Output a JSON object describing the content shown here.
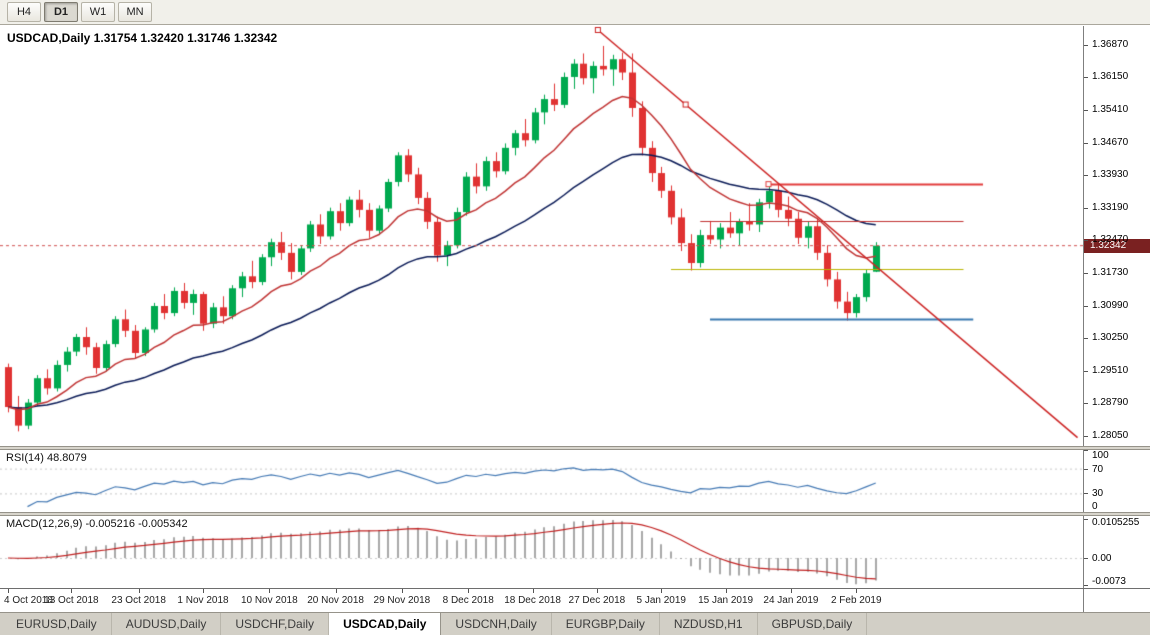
{
  "toolbar": {
    "timeframes": [
      {
        "label": "H4",
        "active": false
      },
      {
        "label": "D1",
        "active": true
      },
      {
        "label": "W1",
        "active": false
      },
      {
        "label": "MN",
        "active": false
      }
    ]
  },
  "chart": {
    "title": "USDCAD,Daily 1.31754 1.32420 1.31746 1.32342",
    "symbol": "USDCAD,Daily",
    "open": "1.31754",
    "high": "1.32420",
    "low": "1.31746",
    "close": "1.32342",
    "current_price": "1.32342",
    "price_axis": [
      "1.36870",
      "1.36150",
      "1.35410",
      "1.34670",
      "1.33930",
      "1.33190",
      "1.32470",
      "1.31730",
      "1.30990",
      "1.30250",
      "1.29510",
      "1.28790",
      "1.28050"
    ],
    "date_axis": [
      {
        "label": "4 Oct 2018",
        "index": 0
      },
      {
        "label": "13 Oct 2018",
        "index": 6.5
      },
      {
        "label": "23 Oct 2018",
        "index": 13.4
      },
      {
        "label": "1 Nov 2018",
        "index": 20
      },
      {
        "label": "10 Nov 2018",
        "index": 26.8
      },
      {
        "label": "20 Nov 2018",
        "index": 33.6
      },
      {
        "label": "29 Nov 2018",
        "index": 40.4
      },
      {
        "label": "8 Dec 2018",
        "index": 47.2
      },
      {
        "label": "18 Dec 2018",
        "index": 53.8
      },
      {
        "label": "27 Dec 2018",
        "index": 60.4
      },
      {
        "label": "5 Jan 2019",
        "index": 67
      },
      {
        "label": "15 Jan 2019",
        "index": 73.6
      },
      {
        "label": "24 Jan 2019",
        "index": 80.3
      },
      {
        "label": "2 Feb 2019",
        "index": 87
      }
    ]
  },
  "chart_data": {
    "type": "candlestick",
    "symbol": "USDCAD",
    "timeframe": "Daily",
    "price_range": [
      1.2782,
      1.373
    ],
    "candles": [
      [
        1.296,
        1.2968,
        1.2858,
        1.287
      ],
      [
        1.287,
        1.2895,
        1.2815,
        1.2828
      ],
      [
        1.2828,
        1.2888,
        1.282,
        1.288
      ],
      [
        1.288,
        1.2942,
        1.2872,
        1.2935
      ],
      [
        1.2935,
        1.2955,
        1.2898,
        1.2912
      ],
      [
        1.2912,
        1.2975,
        1.2905,
        1.2965
      ],
      [
        1.2965,
        1.3005,
        1.295,
        1.2995
      ],
      [
        1.2995,
        1.3035,
        1.2985,
        1.3028
      ],
      [
        1.3028,
        1.305,
        1.2988,
        1.3005
      ],
      [
        1.3005,
        1.3015,
        1.2945,
        1.2958
      ],
      [
        1.2958,
        1.302,
        1.295,
        1.3012
      ],
      [
        1.3012,
        1.3075,
        1.3005,
        1.3068
      ],
      [
        1.3068,
        1.309,
        1.3028,
        1.3042
      ],
      [
        1.3042,
        1.3055,
        1.298,
        1.2992
      ],
      [
        1.2992,
        1.305,
        1.2985,
        1.3045
      ],
      [
        1.3045,
        1.3105,
        1.3038,
        1.3098
      ],
      [
        1.3098,
        1.3125,
        1.3068,
        1.3082
      ],
      [
        1.3082,
        1.314,
        1.3075,
        1.3132
      ],
      [
        1.3132,
        1.315,
        1.3092,
        1.3105
      ],
      [
        1.3105,
        1.3135,
        1.3078,
        1.3125
      ],
      [
        1.3125,
        1.313,
        1.3042,
        1.3058
      ],
      [
        1.3058,
        1.3105,
        1.3048,
        1.3095
      ],
      [
        1.3095,
        1.312,
        1.3058,
        1.3075
      ],
      [
        1.3075,
        1.3145,
        1.3068,
        1.3138
      ],
      [
        1.3138,
        1.3175,
        1.3118,
        1.3165
      ],
      [
        1.3165,
        1.32,
        1.3138,
        1.3152
      ],
      [
        1.3152,
        1.3215,
        1.3145,
        1.3208
      ],
      [
        1.3208,
        1.325,
        1.3188,
        1.3242
      ],
      [
        1.3242,
        1.3265,
        1.3202,
        1.3218
      ],
      [
        1.3218,
        1.324,
        1.3158,
        1.3175
      ],
      [
        1.3175,
        1.3235,
        1.3168,
        1.3228
      ],
      [
        1.3228,
        1.329,
        1.322,
        1.3282
      ],
      [
        1.3282,
        1.3305,
        1.3238,
        1.3255
      ],
      [
        1.3255,
        1.332,
        1.3248,
        1.3312
      ],
      [
        1.3312,
        1.333,
        1.3268,
        1.3285
      ],
      [
        1.3285,
        1.3345,
        1.3278,
        1.3338
      ],
      [
        1.3338,
        1.336,
        1.3298,
        1.3315
      ],
      [
        1.3315,
        1.333,
        1.3252,
        1.3268
      ],
      [
        1.3268,
        1.3325,
        1.3258,
        1.3318
      ],
      [
        1.3318,
        1.3385,
        1.331,
        1.3378
      ],
      [
        1.3378,
        1.3445,
        1.3368,
        1.3438
      ],
      [
        1.3438,
        1.3452,
        1.3378,
        1.3395
      ],
      [
        1.3395,
        1.341,
        1.3328,
        1.3342
      ],
      [
        1.3342,
        1.3355,
        1.3272,
        1.3288
      ],
      [
        1.3288,
        1.33,
        1.3198,
        1.3212
      ],
      [
        1.3212,
        1.3245,
        1.3188,
        1.3235
      ],
      [
        1.3235,
        1.332,
        1.3228,
        1.331
      ],
      [
        1.331,
        1.34,
        1.3302,
        1.339
      ],
      [
        1.339,
        1.342,
        1.3352,
        1.3368
      ],
      [
        1.3368,
        1.3435,
        1.3358,
        1.3425
      ],
      [
        1.3425,
        1.3445,
        1.3388,
        1.3402
      ],
      [
        1.3402,
        1.3465,
        1.3395,
        1.3455
      ],
      [
        1.3455,
        1.3495,
        1.3438,
        1.3488
      ],
      [
        1.3488,
        1.352,
        1.3458,
        1.3472
      ],
      [
        1.3472,
        1.3545,
        1.3465,
        1.3535
      ],
      [
        1.3535,
        1.3575,
        1.3508,
        1.3565
      ],
      [
        1.3565,
        1.36,
        1.3538,
        1.3552
      ],
      [
        1.3552,
        1.3625,
        1.3545,
        1.3615
      ],
      [
        1.3615,
        1.3655,
        1.3588,
        1.3645
      ],
      [
        1.3645,
        1.3668,
        1.3598,
        1.3612
      ],
      [
        1.3612,
        1.365,
        1.3578,
        1.364
      ],
      [
        1.364,
        1.3685,
        1.3618,
        1.3632
      ],
      [
        1.3632,
        1.3665,
        1.3595,
        1.3655
      ],
      [
        1.3655,
        1.367,
        1.3608,
        1.3625
      ],
      [
        1.3625,
        1.3668,
        1.3525,
        1.3545
      ],
      [
        1.3545,
        1.356,
        1.3438,
        1.3455
      ],
      [
        1.3455,
        1.347,
        1.3378,
        1.3398
      ],
      [
        1.3398,
        1.3412,
        1.3342,
        1.3358
      ],
      [
        1.3358,
        1.337,
        1.3282,
        1.3298
      ],
      [
        1.3298,
        1.3318,
        1.3222,
        1.324
      ],
      [
        1.324,
        1.326,
        1.3178,
        1.3195
      ],
      [
        1.3195,
        1.327,
        1.3185,
        1.3258
      ],
      [
        1.3258,
        1.329,
        1.3238,
        1.3248
      ],
      [
        1.3248,
        1.3285,
        1.3228,
        1.3275
      ],
      [
        1.3275,
        1.331,
        1.3252,
        1.3262
      ],
      [
        1.3262,
        1.3295,
        1.3235,
        1.3288
      ],
      [
        1.3288,
        1.333,
        1.3268,
        1.3282
      ],
      [
        1.3282,
        1.334,
        1.3265,
        1.3332
      ],
      [
        1.3332,
        1.3375,
        1.3318,
        1.3358
      ],
      [
        1.3358,
        1.3373,
        1.3298,
        1.3315
      ],
      [
        1.3315,
        1.3345,
        1.3278,
        1.3295
      ],
      [
        1.3295,
        1.331,
        1.3238,
        1.3252
      ],
      [
        1.3252,
        1.3288,
        1.3228,
        1.3278
      ],
      [
        1.3278,
        1.3295,
        1.3202,
        1.3218
      ],
      [
        1.3218,
        1.3235,
        1.3142,
        1.3158
      ],
      [
        1.3158,
        1.3175,
        1.3092,
        1.3108
      ],
      [
        1.3108,
        1.313,
        1.3065,
        1.3082
      ],
      [
        1.3082,
        1.3125,
        1.3072,
        1.3118
      ],
      [
        1.3118,
        1.318,
        1.3108,
        1.3172
      ],
      [
        1.31754,
        1.3242,
        1.31746,
        1.32342
      ]
    ],
    "overlays": {
      "ma_fast": {
        "kind": "ema",
        "period": 13,
        "color": "#c03434"
      },
      "ma_slow": {
        "kind": "ema",
        "period": 34,
        "color": "#0b1b57"
      },
      "trendline": {
        "from_index": 60.5,
        "from_price": 1.3721,
        "to_index": 109.7,
        "to_price": 1.2801,
        "color": "#cc2222",
        "handles": [
          60.5,
          69.5
        ]
      },
      "hlines": [
        {
          "price": 1.3373,
          "from_index": 78,
          "to_index": 100,
          "color": "#e23b3b",
          "width": 2,
          "handle": true
        },
        {
          "price": 1.329,
          "from_index": 71,
          "to_index": 98,
          "color": "#c03030",
          "width": 1
        },
        {
          "price": 1.3181,
          "from_index": 68,
          "to_index": 98,
          "color": "#b9b400",
          "width": 1
        },
        {
          "price": 1.3068,
          "from_index": 72,
          "to_index": 99,
          "color": "#3878b0",
          "width": 2
        }
      ],
      "current_price_line": {
        "price": 1.32342,
        "color": "#d05050"
      }
    },
    "indicators": {
      "rsi": {
        "label": "RSI(14) 48.8079",
        "period": 14,
        "value": 48.8079,
        "range": [
          0,
          100
        ],
        "levels": [
          {
            "label": "100",
            "value": 100,
            "dashed": false
          },
          {
            "label": "70",
            "value": 70,
            "dashed": true
          },
          {
            "label": "30",
            "value": 30,
            "dashed": true
          },
          {
            "label": "0",
            "value": 0,
            "dashed": false
          }
        ],
        "color": "#4479b4"
      },
      "macd": {
        "label": "MACD(12,26,9) -0.005216 -0.005342",
        "fast": 12,
        "slow": 26,
        "signal": 9,
        "macd_value": -0.005216,
        "signal_value": -0.005342,
        "range": [
          -0.008,
          0.0112
        ],
        "levels": [
          {
            "label": "0.0105255",
            "value": 0.0105,
            "dashed": false
          },
          {
            "label": "0.00",
            "value": 0,
            "dashed": true
          },
          {
            "label": "-0.0073",
            "value": -0.0073,
            "dashed": false
          }
        ],
        "histogram_color": "#a8a8a8",
        "signal_color": "#c02020"
      }
    }
  },
  "bottom_tabs": [
    {
      "label": "EURUSD,Daily",
      "active": false
    },
    {
      "label": "AUDUSD,Daily",
      "active": false
    },
    {
      "label": "USDCHF,Daily",
      "active": false
    },
    {
      "label": "USDCAD,Daily",
      "active": true
    },
    {
      "label": "USDCNH,Daily",
      "active": false
    },
    {
      "label": "EURGBP,Daily",
      "active": false
    },
    {
      "label": "NZDUSD,H1",
      "active": false
    },
    {
      "label": "GBPUSD,Daily",
      "active": false
    }
  ],
  "colors": {
    "up": "#00a94f",
    "down": "#e03232",
    "background": "#ffffff",
    "axis_text": "#000000",
    "price_marker_bg": "#7a2121",
    "price_marker_text": "#ffffff",
    "toolbar_bg": "#f1f0ea",
    "tabbar_bg": "#d2cfc6"
  }
}
